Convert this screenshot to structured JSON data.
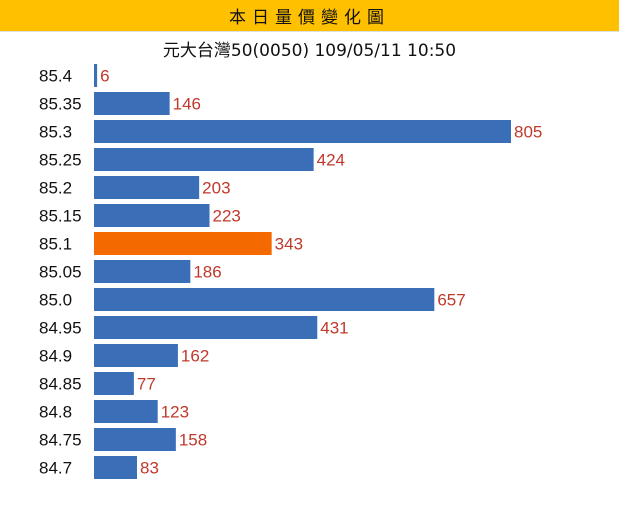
{
  "header": {
    "title": "本日量價變化圖"
  },
  "chart_data": {
    "type": "bar",
    "orientation": "horizontal",
    "title": "本日量價變化圖",
    "subtitle": "元大台灣50(0050) 109/05/11 10:50",
    "categories": [
      "85.4",
      "85.35",
      "85.3",
      "85.25",
      "85.2",
      "85.15",
      "85.1",
      "85.05",
      "85.0",
      "84.95",
      "84.9",
      "84.85",
      "84.8",
      "84.75",
      "84.7"
    ],
    "values": [
      6,
      146,
      805,
      424,
      203,
      223,
      343,
      186,
      657,
      431,
      162,
      77,
      123,
      158,
      83
    ],
    "value_labels": [
      "6",
      "146",
      "805",
      "424",
      "203",
      "223",
      "343",
      "186",
      "657",
      "431",
      "162",
      "77",
      "123",
      "158",
      "83"
    ],
    "highlight_category": "85.1",
    "xlim": [
      0,
      805
    ],
    "grid": false,
    "colors": {
      "bar": "#3a6fb7",
      "highlight": "#f46a00",
      "value_label": "#c0392b",
      "header_bg": "#ffc000"
    }
  }
}
